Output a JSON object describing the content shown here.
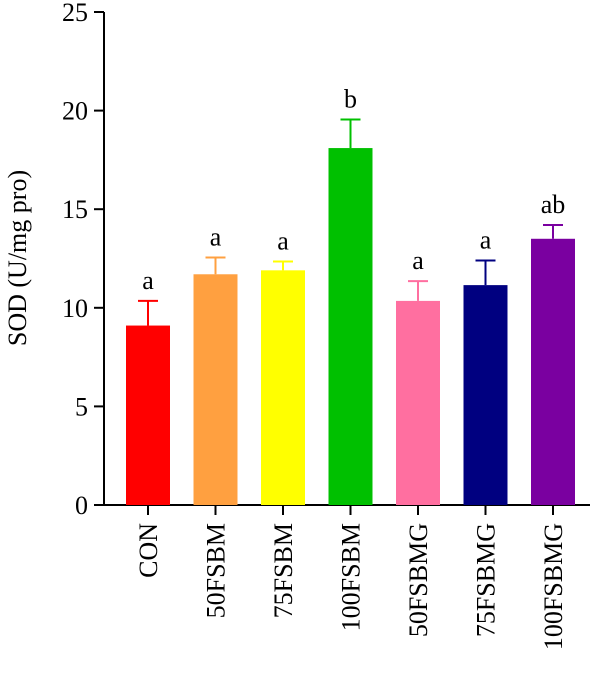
{
  "chart_data": {
    "type": "bar",
    "categories": [
      "CON",
      "50FSBM",
      "75FSBM",
      "100FSBM",
      "50FSBMG",
      "75FSBMG",
      "100FSBMG"
    ],
    "values": [
      9.1,
      11.7,
      11.9,
      18.1,
      10.35,
      11.15,
      13.5
    ],
    "errors": [
      1.25,
      0.85,
      0.45,
      1.45,
      1.0,
      1.25,
      0.7
    ],
    "significance": [
      "a",
      "a",
      "a",
      "b",
      "a",
      "a",
      "ab"
    ],
    "colors": [
      "#ff0000",
      "#ffa040",
      "#ffff00",
      "#00c000",
      "#ff6fa0",
      "#000080",
      "#7a00a0"
    ],
    "ylabel": "SOD (U/mg pro)",
    "xlabel": "",
    "ylim": [
      0,
      25
    ],
    "yticks": [
      0,
      5,
      10,
      15,
      20,
      25
    ],
    "grid": false
  }
}
